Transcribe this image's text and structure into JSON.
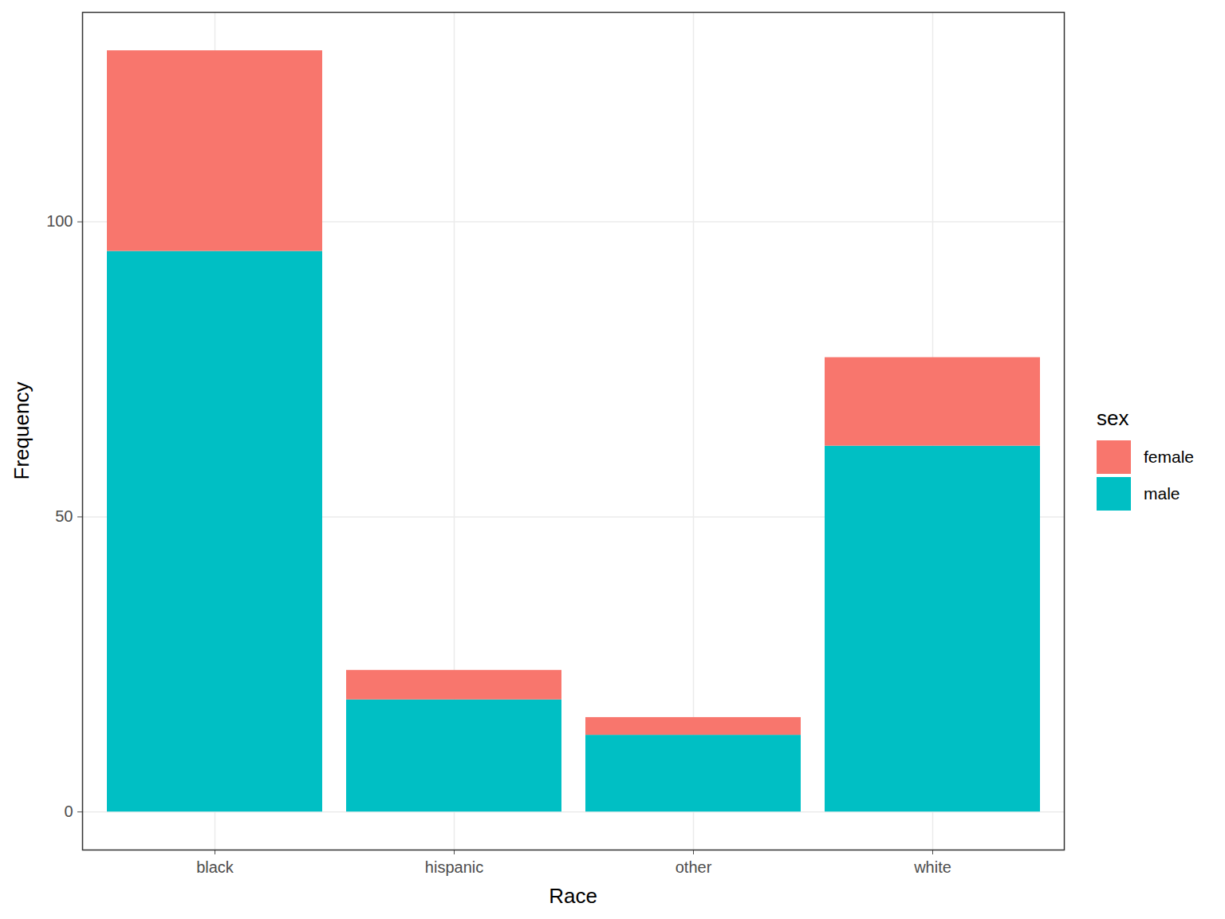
{
  "chart_data": {
    "type": "bar",
    "stacked": true,
    "x_label": "Race",
    "y_label": "Frequency",
    "legend_title": "sex",
    "categories": [
      "black",
      "hispanic",
      "other",
      "white"
    ],
    "series": [
      {
        "name": "female",
        "color": "#F8766D",
        "values": [
          34,
          5,
          3,
          15
        ]
      },
      {
        "name": "male",
        "color": "#00BFC4",
        "values": [
          95,
          19,
          13,
          62
        ]
      }
    ],
    "ylim": [
      -6.45,
      135.5
    ],
    "yticks": [
      0,
      50,
      100
    ],
    "grid": true,
    "legend": "right"
  }
}
